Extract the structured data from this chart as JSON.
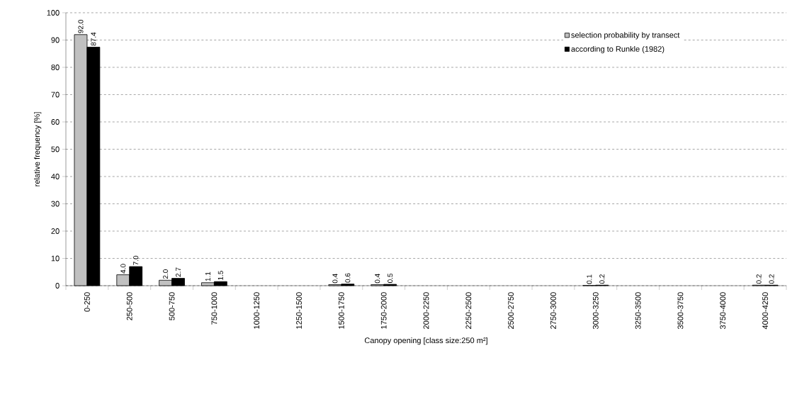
{
  "chart_data": {
    "type": "bar",
    "xlabel": "Canopy opening [class size:250 m²]",
    "ylabel": "relative frequency [%]",
    "categories": [
      "0-250",
      "250-500",
      "500-750",
      "750-1000",
      "1000-1250",
      "1250-1500",
      "1500-1750",
      "1750-2000",
      "2000-2250",
      "2250-2500",
      "2500-2750",
      "2750-3000",
      "3000-3250",
      "3250-3500",
      "3500-3750",
      "3750-4000",
      "4000-4250"
    ],
    "series": [
      {
        "name": "selection probability by transect",
        "color": "#c0c0c0",
        "values": [
          92.0,
          4.0,
          2.0,
          1.1,
          null,
          null,
          0.4,
          0.4,
          null,
          null,
          null,
          null,
          0.1,
          null,
          null,
          null,
          0.2
        ],
        "value_labels": [
          "92.0",
          "4.0",
          "2.0",
          "1.1",
          null,
          null,
          "0.4",
          "0.4",
          null,
          null,
          null,
          null,
          "0.1",
          null,
          null,
          null,
          "0.2"
        ]
      },
      {
        "name": "according to Runkle (1982)",
        "color": "#000000",
        "values": [
          87.4,
          7.0,
          2.7,
          1.5,
          null,
          null,
          0.6,
          0.5,
          null,
          null,
          null,
          null,
          0.2,
          null,
          null,
          null,
          0.2
        ],
        "value_labels": [
          "87.4",
          "7.0",
          "2.7",
          "1.5",
          null,
          null,
          "0.6",
          "0.5",
          null,
          null,
          null,
          null,
          "0.2",
          null,
          null,
          null,
          "0.2"
        ]
      }
    ],
    "ylim": [
      0,
      100
    ],
    "yticks": [
      0,
      10,
      20,
      30,
      40,
      50,
      60,
      70,
      80,
      90,
      100
    ],
    "grid": "y",
    "legend": "top right"
  }
}
